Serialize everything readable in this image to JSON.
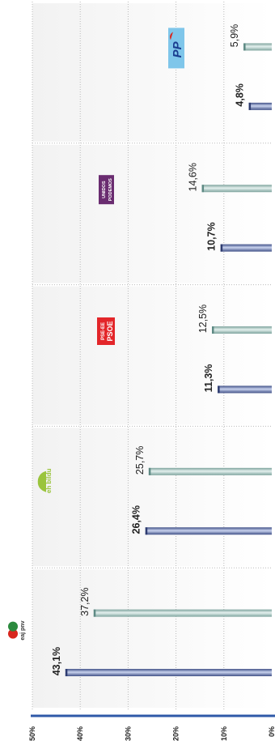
{
  "chart_data": {
    "type": "bar",
    "orientation": "horizontal",
    "categories": [
      "PNV",
      "EH Bildu",
      "PSE-EE PSOE",
      "Unidos Podemos",
      "PP"
    ],
    "logo_texts": {
      "PNV": "eaj pnv",
      "EH Bildu": "eh bildu",
      "PSE-EE PSOE": [
        "PSE-EE",
        "PSOE"
      ],
      "Unidos Podemos": [
        "UNIDOS",
        "PODEMOS"
      ],
      "PP": "PP"
    },
    "series": [
      {
        "values": [
          37.2,
          25.7,
          12.5,
          14.6,
          5.9
        ],
        "labels": [
          "37,2%",
          "25,7%",
          "12,5%",
          "14,6%",
          "5,9%"
        ],
        "color": "#9fc3bd",
        "label_weight": "normal"
      },
      {
        "values": [
          43.1,
          26.4,
          11.3,
          10.7,
          4.8
        ],
        "labels": [
          "43,1%",
          "26,4%",
          "11,3%",
          "10,7%",
          "4,8%"
        ],
        "color": "#6b7fae",
        "label_weight": "bold"
      }
    ],
    "axis": {
      "range": [
        0,
        50
      ],
      "ticks": [
        0,
        10,
        20,
        30,
        40,
        50
      ],
      "tick_labels": [
        "0%",
        "10%",
        "20%",
        "30%",
        "40%",
        "50%"
      ]
    },
    "grid": true,
    "colors": {
      "axis": "#2f59a8",
      "grid": "#b9b9b9",
      "pnv_red": "#d8261e",
      "pnv_green": "#2b8a3e",
      "bildu_green": "#9ac43c",
      "psoe_red": "#e3262a",
      "podemos_purple": "#6a2c70",
      "pp_blue": "#1a3d8f",
      "pp_sky": "#7fc6ea"
    }
  }
}
